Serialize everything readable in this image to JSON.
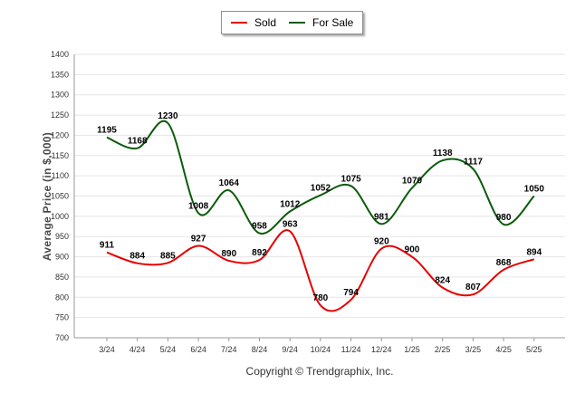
{
  "legend": {
    "sold_label": "Sold",
    "forsale_label": "For Sale"
  },
  "copyright": "Copyright © Trendgraphix, Inc.",
  "colors": {
    "sold": "#e60000",
    "for_sale": "#0a5c0a",
    "grid": "#e5e5e5",
    "axis": "#999999"
  },
  "chart_data": {
    "type": "line",
    "categories": [
      "3/24",
      "4/24",
      "5/24",
      "6/24",
      "7/24",
      "8/24",
      "9/24",
      "10/24",
      "11/24",
      "12/24",
      "1/25",
      "2/25",
      "3/25",
      "4/25",
      "5/25"
    ],
    "series": [
      {
        "name": "Sold",
        "values": [
          911,
          884,
          885,
          927,
          890,
          892,
          963,
          780,
          794,
          920,
          900,
          824,
          807,
          868,
          894
        ]
      },
      {
        "name": "For Sale",
        "values": [
          1195,
          1168,
          1230,
          1008,
          1064,
          958,
          1012,
          1052,
          1075,
          981,
          1070,
          1138,
          1117,
          980,
          1050
        ]
      }
    ],
    "ylabel": "Average Price (in $,000)",
    "xlabel": "",
    "ylim": [
      700,
      1400
    ],
    "yticks": [
      700,
      750,
      800,
      850,
      900,
      950,
      1000,
      1050,
      1100,
      1150,
      1200,
      1250,
      1300,
      1350,
      1400
    ],
    "grid": true,
    "legend_position": "top-center"
  }
}
